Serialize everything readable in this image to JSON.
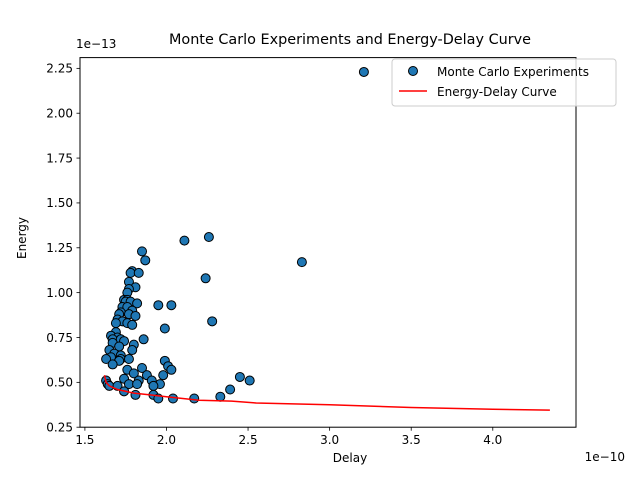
{
  "chart_data": {
    "type": "scatter",
    "title": "Monte Carlo Experiments and Energy-Delay Curve",
    "xlabel": "Delay",
    "ylabel": "Energy",
    "x_multiplier_label": "1e−10",
    "y_multiplier_label": "1e−13",
    "xlim": [
      1.47,
      4.51
    ],
    "ylim": [
      0.25,
      2.31
    ],
    "x_ticks": [
      1.5,
      2.0,
      2.5,
      3.0,
      3.5,
      4.0
    ],
    "x_tick_labels": [
      "1.5",
      "2.0",
      "2.5",
      "3.0",
      "3.5",
      "4.0"
    ],
    "y_ticks": [
      0.25,
      0.5,
      0.75,
      1.0,
      1.25,
      1.5,
      1.75,
      2.0,
      2.25
    ],
    "y_tick_labels": [
      "0.25",
      "0.50",
      "0.75",
      "1.00",
      "1.25",
      "1.50",
      "1.75",
      "2.00",
      "2.25"
    ],
    "grid": false,
    "legend_position": "upper-right",
    "series": [
      {
        "name": "Monte Carlo Experiments",
        "kind": "scatter",
        "color": "#1f77b4",
        "edge_color": "#000000",
        "points": [
          [
            3.21,
            2.23
          ],
          [
            2.83,
            1.17
          ],
          [
            2.26,
            1.31
          ],
          [
            2.11,
            1.29
          ],
          [
            2.24,
            1.08
          ],
          [
            2.28,
            0.84
          ],
          [
            2.03,
            0.93
          ],
          [
            1.95,
            0.93
          ],
          [
            1.99,
            0.8
          ],
          [
            1.85,
            1.23
          ],
          [
            1.87,
            1.18
          ],
          [
            1.79,
            1.12
          ],
          [
            1.78,
            1.11
          ],
          [
            1.83,
            1.11
          ],
          [
            1.77,
            1.06
          ],
          [
            1.81,
            1.03
          ],
          [
            1.77,
            1.02
          ],
          [
            1.76,
            1.0
          ],
          [
            1.74,
            0.96
          ],
          [
            1.76,
            0.96
          ],
          [
            1.75,
            0.95
          ],
          [
            1.78,
            0.95
          ],
          [
            1.82,
            0.94
          ],
          [
            1.73,
            0.92
          ],
          [
            1.76,
            0.92
          ],
          [
            1.79,
            0.9
          ],
          [
            1.72,
            0.89
          ],
          [
            1.71,
            0.88
          ],
          [
            1.77,
            0.88
          ],
          [
            1.81,
            0.87
          ],
          [
            1.7,
            0.85
          ],
          [
            1.73,
            0.84
          ],
          [
            1.69,
            0.83
          ],
          [
            1.76,
            0.83
          ],
          [
            1.79,
            0.82
          ],
          [
            1.69,
            0.78
          ],
          [
            1.66,
            0.76
          ],
          [
            1.7,
            0.75
          ],
          [
            1.86,
            0.74
          ],
          [
            1.67,
            0.74
          ],
          [
            1.72,
            0.74
          ],
          [
            1.74,
            0.73
          ],
          [
            1.67,
            0.72
          ],
          [
            1.8,
            0.71
          ],
          [
            1.71,
            0.7
          ],
          [
            1.65,
            0.68
          ],
          [
            1.79,
            0.68
          ],
          [
            1.68,
            0.66
          ],
          [
            1.72,
            0.65
          ],
          [
            1.66,
            0.64
          ],
          [
            1.72,
            0.63
          ],
          [
            1.63,
            0.63
          ],
          [
            1.77,
            0.63
          ],
          [
            1.71,
            0.62
          ],
          [
            1.99,
            0.62
          ],
          [
            1.67,
            0.6
          ],
          [
            2.01,
            0.59
          ],
          [
            1.85,
            0.58
          ],
          [
            1.76,
            0.57
          ],
          [
            2.03,
            0.57
          ],
          [
            1.8,
            0.55
          ],
          [
            1.88,
            0.54
          ],
          [
            1.98,
            0.54
          ],
          [
            2.45,
            0.53
          ],
          [
            1.74,
            0.52
          ],
          [
            1.83,
            0.51
          ],
          [
            2.51,
            0.51
          ],
          [
            1.63,
            0.51
          ],
          [
            1.91,
            0.51
          ],
          [
            1.64,
            0.49
          ],
          [
            1.77,
            0.49
          ],
          [
            1.82,
            0.49
          ],
          [
            1.96,
            0.49
          ],
          [
            1.92,
            0.48
          ],
          [
            1.65,
            0.48
          ],
          [
            1.7,
            0.48
          ],
          [
            2.39,
            0.46
          ],
          [
            1.74,
            0.45
          ],
          [
            1.92,
            0.43
          ],
          [
            1.81,
            0.43
          ],
          [
            2.33,
            0.42
          ],
          [
            2.04,
            0.41
          ],
          [
            1.95,
            0.41
          ],
          [
            2.17,
            0.41
          ]
        ]
      },
      {
        "name": "Energy-Delay Curve",
        "kind": "line",
        "color": "#ff0000",
        "points": [
          [
            1.62,
            0.54
          ],
          [
            1.63,
            0.5
          ],
          [
            1.65,
            0.48
          ],
          [
            1.7,
            0.46
          ],
          [
            1.8,
            0.44
          ],
          [
            1.9,
            0.43
          ],
          [
            2.0,
            0.42
          ],
          [
            2.2,
            0.4
          ],
          [
            2.4,
            0.395
          ],
          [
            2.55,
            0.385
          ],
          [
            3.0,
            0.375
          ],
          [
            3.5,
            0.36
          ],
          [
            4.0,
            0.35
          ],
          [
            4.35,
            0.345
          ]
        ]
      }
    ]
  }
}
